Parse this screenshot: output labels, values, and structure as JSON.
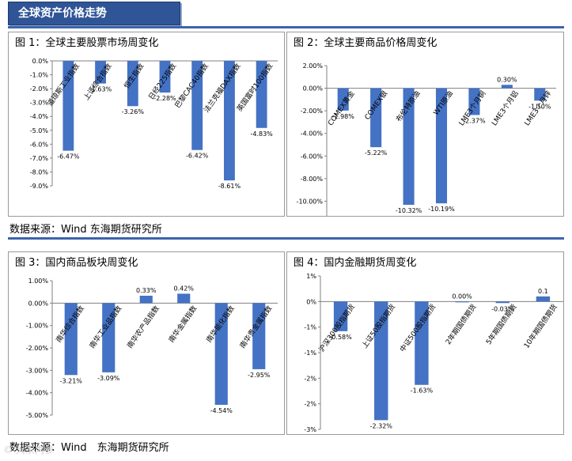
{
  "page_title": "全球资产价格走势",
  "watermark": "© 大宗内参",
  "source_top": "数据来源：Wind 东海期货研究所",
  "source_bottom": "数据来源：Wind　东海期货研究所",
  "colors": {
    "bar": "#4472c4",
    "title_bg": "#2f5597"
  },
  "chart_data": [
    {
      "type": "bar",
      "title": "图 1：全球主要股票市场周变化",
      "categories": [
        "道琼斯工业指数",
        "上证综合指数",
        "恒生指数",
        "日经225指数",
        "巴黎CAC40指数",
        "法兰克福DAX指数",
        "英国富时100指数"
      ],
      "values": [
        -6.47,
        -1.63,
        -3.26,
        -2.28,
        -6.42,
        -8.61,
        -4.83
      ],
      "value_labels": [
        "-6.47%",
        "-1.63%",
        "-3.26%",
        "-2.28%",
        "-6.42%",
        "-8.61%",
        "-4.83%"
      ],
      "ylim": [
        -9,
        0
      ],
      "yticks": [
        0,
        -1,
        -2,
        -3,
        -4,
        -5,
        -6,
        -7,
        -8,
        -9
      ],
      "ytick_labels": [
        "0.0%",
        "-1.0%",
        "-2.0%",
        "-3.0%",
        "-4.0%",
        "-5.0%",
        "-6.0%",
        "-7.0%",
        "-8.0%",
        "-9.0%"
      ]
    },
    {
      "type": "bar",
      "title": "图 2：全球主要商品价格周变化",
      "categories": [
        "COMEX黄金",
        "COMEX银",
        "布伦特原油",
        "WTI原油",
        "LME3个月铜",
        "LME3个月铝",
        "LME3个月锌"
      ],
      "values": [
        -1.98,
        -5.22,
        -10.32,
        -10.19,
        -2.37,
        0.3,
        -1.1
      ],
      "value_labels": [
        "-1.98%",
        "-5.22%",
        "-10.32%",
        "-10.19%",
        "-2.37%",
        "0.30%",
        "-1.10%"
      ],
      "ylim": [
        -12,
        2
      ],
      "yticks": [
        2,
        0,
        -2,
        -4,
        -6,
        -8,
        -10,
        -12
      ],
      "ytick_labels": [
        "2.00%",
        "0.00%",
        "-2.00%",
        "-4.00%",
        "-6.00%",
        "-8.00%",
        "-10.00%",
        "-12.00%"
      ]
    },
    {
      "type": "bar",
      "title": "图 3：国内商品板块周变化",
      "categories": [
        "南华综合指数",
        "南华工业品指数",
        "南华农产品指数",
        "南华金属指数",
        "南华能化指数",
        "南华贵金属指数"
      ],
      "values": [
        -3.21,
        -3.09,
        0.33,
        0.42,
        -4.54,
        -2.95
      ],
      "value_labels": [
        "-3.21%",
        "-3.09%",
        "0.33%",
        "0.42%",
        "-4.54%",
        "-2.95%"
      ],
      "ylim": [
        -5,
        1
      ],
      "yticks": [
        1,
        0,
        -1,
        -2,
        -3,
        -4,
        -5
      ],
      "ytick_labels": [
        "1.00%",
        "0.00%",
        "-1.00%",
        "-2.00%",
        "-3.00%",
        "-4.00%",
        "-5.00%"
      ]
    },
    {
      "type": "bar",
      "title": "图 4：国内金融期货周变化",
      "categories": [
        "沪深300股指期货",
        "上证50股指期货",
        "中证500股指期货",
        "2年期国债期货",
        "5年期国债期货",
        "10年期国债期货"
      ],
      "values": [
        -0.58,
        -2.32,
        -1.63,
        0.0,
        -0.03,
        0.1
      ],
      "value_labels": [
        "-0.58%",
        "-2.32%",
        "-1.63%",
        "0.00%",
        "-0.03%",
        "0.1"
      ],
      "ylim": [
        -2.5,
        0.5
      ],
      "yticks": [
        0.5,
        0,
        -0.5,
        -1,
        -1.5,
        -2,
        -2.5
      ],
      "ytick_labels": [
        "1%",
        "0%",
        "-1%",
        "-1%",
        "-2%",
        "-2%",
        "-3%"
      ]
    }
  ]
}
